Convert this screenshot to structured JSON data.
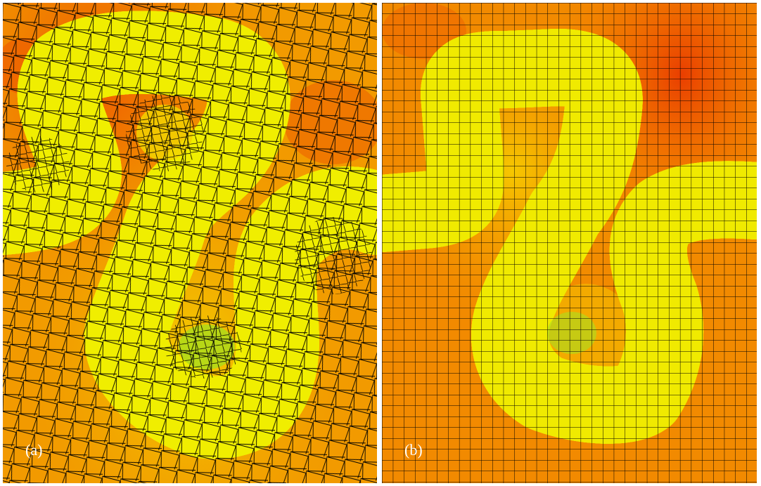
{
  "panels": [
    {
      "label": "(a)",
      "mesh": "unstructured-quad-mesh"
    },
    {
      "label": "(b)",
      "mesh": "structured-grid"
    }
  ],
  "colormap": {
    "background_hot": "#f07800",
    "background_warm": "#f6b400",
    "mid_yellow": "#f0ff00",
    "mid_green": "#30d830",
    "channel_cyan": "#00c0ff",
    "channel_blue": "#1040e0",
    "mesh_line": "#000000"
  }
}
